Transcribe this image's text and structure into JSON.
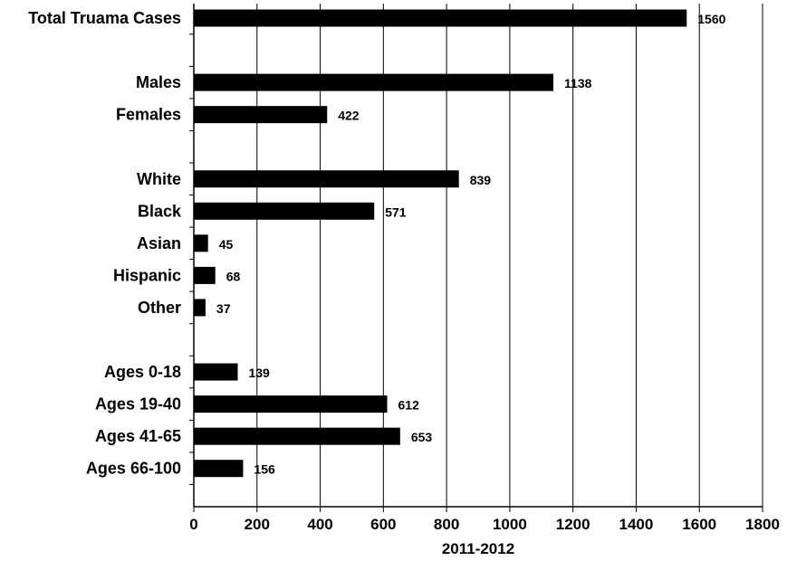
{
  "chart_data": {
    "type": "bar",
    "orientation": "horizontal",
    "xlabel": "2011-2012",
    "xlim": [
      0,
      1800
    ],
    "xticks": [
      0,
      200,
      400,
      600,
      800,
      1000,
      1200,
      1400,
      1600,
      1800
    ],
    "grid": "vertical",
    "bar_color": "#000000",
    "categories": [
      "Total Truama Cases",
      "",
      "Males",
      "Females",
      "",
      "White",
      "Black",
      "Asian",
      "Hispanic",
      "Other",
      "",
      "Ages 0-18",
      "Ages 19-40",
      "Ages 41-65",
      "Ages 66-100"
    ],
    "values": [
      1560,
      null,
      1138,
      422,
      null,
      839,
      571,
      45,
      68,
      37,
      null,
      139,
      612,
      653,
      156
    ]
  }
}
